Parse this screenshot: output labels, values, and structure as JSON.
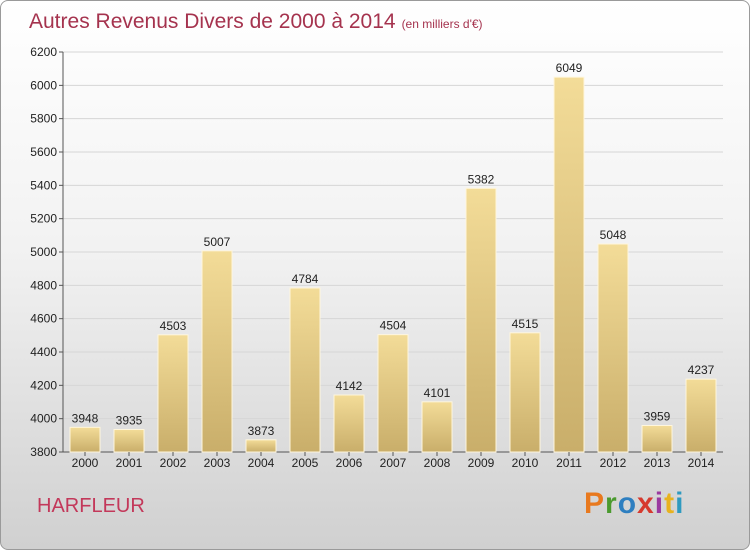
{
  "title": "Autres Revenus Divers de 2000 à 2014",
  "subtitle": "(en milliers d'€)",
  "city": "HARFLEUR",
  "logo": {
    "text": "Proxiti",
    "colors": [
      "#e8791e",
      "#4a9a2e",
      "#2e7fc0",
      "#d63a2e",
      "#9a3aa0",
      "#e8b21e",
      "#2e9ac0"
    ]
  },
  "chart_data": {
    "type": "bar",
    "categories": [
      "2000",
      "2001",
      "2002",
      "2003",
      "2004",
      "2005",
      "2006",
      "2007",
      "2008",
      "2009",
      "2010",
      "2011",
      "2012",
      "2013",
      "2014"
    ],
    "values": [
      3948,
      3935,
      4503,
      5007,
      3873,
      4784,
      4142,
      4504,
      4101,
      5382,
      4515,
      6049,
      5048,
      3959,
      4237
    ],
    "ylim": [
      3800,
      6200
    ],
    "yticks": [
      3800,
      4000,
      4200,
      4400,
      4600,
      4800,
      5000,
      5200,
      5400,
      5600,
      5800,
      6000,
      6200
    ],
    "grid": true,
    "bar_color": "#e8cf8a"
  }
}
